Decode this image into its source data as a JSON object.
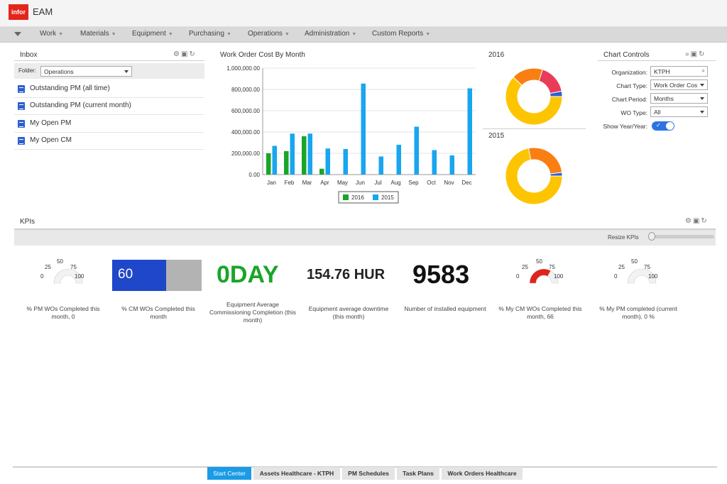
{
  "app": {
    "logo_text": "infor",
    "title": "EAM",
    "brand_color": "#e4251b"
  },
  "menu": {
    "items": [
      {
        "label": "Work"
      },
      {
        "label": "Materials"
      },
      {
        "label": "Equipment"
      },
      {
        "label": "Purchasing"
      },
      {
        "label": "Operations"
      },
      {
        "label": "Administration"
      },
      {
        "label": "Custom Reports"
      }
    ]
  },
  "inbox": {
    "title": "Inbox",
    "folder_label": "Folder:",
    "folder_value": "Operations",
    "items": [
      {
        "label": "Outstanding PM (all time)"
      },
      {
        "label": "Outstanding PM (current month)"
      },
      {
        "label": "My Open PM"
      },
      {
        "label": "My Open CM"
      }
    ]
  },
  "work_order_chart": {
    "title": "Work Order Cost By Month"
  },
  "chart_data": [
    {
      "type": "bar",
      "title": "Work Order Cost By Month",
      "categories": [
        "Jan",
        "Feb",
        "Mar",
        "Apr",
        "May",
        "Jun",
        "Jul",
        "Aug",
        "Sep",
        "Oct",
        "Nov",
        "Dec"
      ],
      "series": [
        {
          "name": "2016",
          "color": "#1aa52a",
          "values": [
            200000,
            220000,
            360000,
            55000,
            null,
            null,
            null,
            null,
            null,
            null,
            null,
            null
          ]
        },
        {
          "name": "2015",
          "color": "#19a6ef",
          "values": [
            270000,
            385000,
            385000,
            245000,
            240000,
            855000,
            170000,
            280000,
            450000,
            230000,
            180000,
            810000
          ]
        }
      ],
      "yticks": [
        "0.00",
        "200,000.00",
        "400,000.00",
        "600,000.00",
        "800,000.00",
        "1,000,000.00"
      ],
      "ylim": [
        0,
        1000000
      ],
      "legend": "bottom-center",
      "grid": true
    },
    {
      "type": "pie",
      "title": "2016",
      "slices": [
        {
          "value": 62,
          "color": "#fdc500"
        },
        {
          "value": 18,
          "color": "#f97f12"
        },
        {
          "value": 17,
          "color": "#ea3b58"
        },
        {
          "value": 3,
          "color": "#2c5fd3"
        }
      ]
    },
    {
      "type": "pie",
      "title": "2015",
      "slices": [
        {
          "value": 72,
          "color": "#fdc500"
        },
        {
          "value": 26,
          "color": "#f97f12"
        },
        {
          "value": 2,
          "color": "#2c5fd3"
        }
      ]
    }
  ],
  "chart_controls": {
    "title": "Chart Controls",
    "organization_label": "Organization:",
    "organization_value": "KTPH",
    "chart_type_label": "Chart Type:",
    "chart_type_value": "Work Order Cos",
    "chart_period_label": "Chart Period:",
    "chart_period_value": "Months",
    "wo_type_label": "WO Type:",
    "wo_type_value": "All",
    "show_year_label": "Show Year/Year:",
    "show_year_on": true
  },
  "kpis": {
    "title": "KPIs",
    "resize_label": "Resize KPIs",
    "gauge_labels": [
      "0",
      "25",
      "50",
      "75",
      "100"
    ],
    "items": [
      {
        "caption": "% PM WOs Completed this month, 0",
        "gauge_value": 0
      },
      {
        "caption": "% CM WOs Completed this month",
        "value": "60",
        "fill_percent": 60
      },
      {
        "caption": "Equipment Average Commissioning Completion (this month)",
        "value": "0DAY"
      },
      {
        "caption": "Equipment average downtime (this month)",
        "value": "154.76",
        "unit": "HUR"
      },
      {
        "caption": "Number of installed equipment",
        "value": "9583"
      },
      {
        "caption": "% My CM WOs Completed this month, 66",
        "gauge_value": 66
      },
      {
        "caption": "% My PM completed (current month), 0 %",
        "gauge_value": 0
      }
    ]
  },
  "footer_tabs": [
    {
      "label": "Start Center",
      "active": true
    },
    {
      "label": "Assets Healthcare - KTPH"
    },
    {
      "label": "PM Schedules"
    },
    {
      "label": "Task Plans"
    },
    {
      "label": "Work Orders Healthcare"
    }
  ]
}
